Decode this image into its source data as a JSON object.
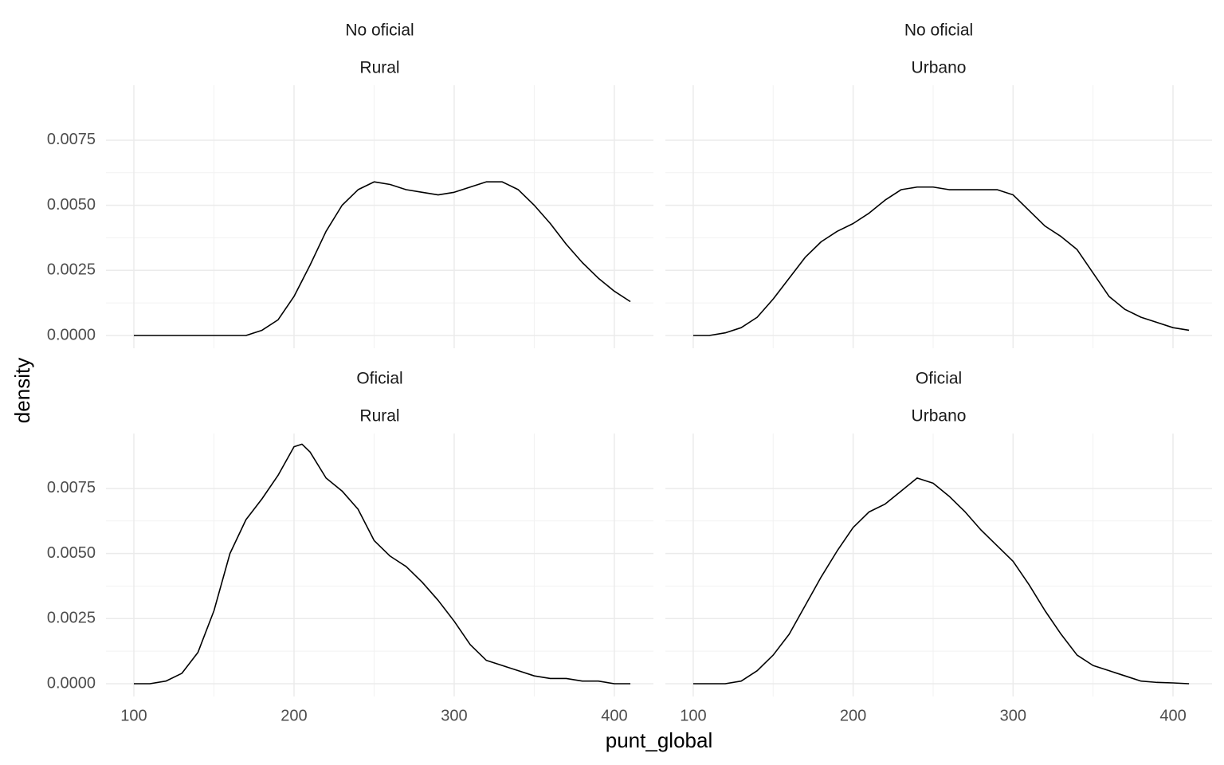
{
  "axis_labels": {
    "x": "punt_global",
    "y": "density"
  },
  "chart_data": [
    {
      "type": "line",
      "strip": [
        "No oficial",
        "Rural"
      ],
      "color": "#000000",
      "grid": true,
      "x": [
        100,
        110,
        120,
        130,
        140,
        150,
        160,
        170,
        180,
        190,
        200,
        210,
        220,
        230,
        240,
        250,
        260,
        270,
        280,
        290,
        300,
        310,
        320,
        330,
        340,
        350,
        360,
        370,
        380,
        390,
        400,
        410
      ],
      "values": [
        0,
        0,
        0,
        0,
        0,
        0,
        0,
        0,
        0.0002,
        0.0006,
        0.0015,
        0.0027,
        0.004,
        0.005,
        0.0056,
        0.0059,
        0.0058,
        0.0056,
        0.0055,
        0.0054,
        0.0055,
        0.0057,
        0.0059,
        0.0059,
        0.0056,
        0.005,
        0.0043,
        0.0035,
        0.0028,
        0.0022,
        0.0017,
        0.0013
      ],
      "xlim": [
        82.6,
        424.4
      ],
      "ylim": [
        -0.00049,
        0.00961
      ],
      "xticks": [
        100,
        200,
        300,
        400
      ],
      "yticks": [
        {
          "value": 0,
          "label": "0.0000"
        },
        {
          "value": 0.0025,
          "label": "0.0025"
        },
        {
          "value": 0.005,
          "label": "0.0050"
        },
        {
          "value": 0.0075,
          "label": "0.0075"
        }
      ]
    },
    {
      "type": "line",
      "strip": [
        "No oficial",
        "Urbano"
      ],
      "color": "#000000",
      "grid": true,
      "x": [
        100,
        110,
        120,
        130,
        140,
        150,
        160,
        170,
        180,
        190,
        200,
        210,
        220,
        230,
        240,
        250,
        260,
        270,
        280,
        290,
        300,
        310,
        320,
        330,
        340,
        350,
        360,
        370,
        380,
        390,
        400,
        410
      ],
      "values": [
        0,
        0,
        0.0001,
        0.0003,
        0.0007,
        0.0014,
        0.0022,
        0.003,
        0.0036,
        0.004,
        0.0043,
        0.0047,
        0.0052,
        0.0056,
        0.0057,
        0.0057,
        0.0056,
        0.0056,
        0.0056,
        0.0056,
        0.0054,
        0.0048,
        0.0042,
        0.0038,
        0.0033,
        0.0024,
        0.0015,
        0.001,
        0.0007,
        0.0005,
        0.0003,
        0.0002
      ],
      "xlim": [
        82.6,
        424.4
      ],
      "ylim": [
        -0.00049,
        0.00961
      ],
      "xticks": [
        100,
        200,
        300,
        400
      ],
      "yticks": [
        {
          "value": 0,
          "label": "0.0000"
        },
        {
          "value": 0.0025,
          "label": "0.0025"
        },
        {
          "value": 0.005,
          "label": "0.0050"
        },
        {
          "value": 0.0075,
          "label": "0.0075"
        }
      ]
    },
    {
      "type": "line",
      "strip": [
        "Oficial",
        "Rural"
      ],
      "color": "#000000",
      "grid": true,
      "x": [
        100,
        110,
        120,
        130,
        140,
        150,
        160,
        170,
        180,
        190,
        200,
        205,
        210,
        220,
        230,
        240,
        250,
        260,
        270,
        280,
        290,
        300,
        310,
        320,
        330,
        340,
        350,
        360,
        370,
        380,
        390,
        400,
        410
      ],
      "values": [
        0,
        0,
        0.0001,
        0.0004,
        0.0012,
        0.0028,
        0.005,
        0.0063,
        0.0071,
        0.008,
        0.0091,
        0.0092,
        0.0089,
        0.0079,
        0.0074,
        0.0067,
        0.0055,
        0.0049,
        0.0045,
        0.0039,
        0.0032,
        0.0024,
        0.0015,
        0.0009,
        0.0007,
        0.0005,
        0.0003,
        0.0002,
        0.0002,
        0.0001,
        0.0001,
        0,
        0
      ],
      "xlim": [
        82.6,
        424.4
      ],
      "ylim": [
        -0.00049,
        0.00961
      ],
      "xticks": [
        100,
        200,
        300,
        400
      ],
      "yticks": [
        {
          "value": 0,
          "label": "0.0000"
        },
        {
          "value": 0.0025,
          "label": "0.0025"
        },
        {
          "value": 0.005,
          "label": "0.0050"
        },
        {
          "value": 0.0075,
          "label": "0.0075"
        }
      ]
    },
    {
      "type": "line",
      "strip": [
        "Oficial",
        "Urbano"
      ],
      "color": "#000000",
      "grid": true,
      "x": [
        100,
        110,
        120,
        130,
        140,
        150,
        160,
        170,
        180,
        190,
        200,
        210,
        220,
        230,
        240,
        250,
        260,
        270,
        280,
        290,
        300,
        310,
        320,
        330,
        340,
        350,
        360,
        370,
        380,
        390,
        400,
        410
      ],
      "values": [
        0,
        0,
        0,
        0.0001,
        0.0005,
        0.0011,
        0.0019,
        0.003,
        0.0041,
        0.0051,
        0.006,
        0.0066,
        0.0069,
        0.0074,
        0.0079,
        0.0077,
        0.0072,
        0.0066,
        0.0059,
        0.0053,
        0.0047,
        0.0038,
        0.0028,
        0.0019,
        0.0011,
        0.0007,
        0.0005,
        0.0003,
        0.0001,
        5e-05,
        3e-05,
        0
      ],
      "xlim": [
        82.6,
        424.4
      ],
      "ylim": [
        -0.00049,
        0.00961
      ],
      "xticks": [
        100,
        200,
        300,
        400
      ],
      "yticks": [
        {
          "value": 0,
          "label": "0.0000"
        },
        {
          "value": 0.0025,
          "label": "0.0025"
        },
        {
          "value": 0.005,
          "label": "0.0050"
        },
        {
          "value": 0.0075,
          "label": "0.0075"
        }
      ]
    }
  ]
}
